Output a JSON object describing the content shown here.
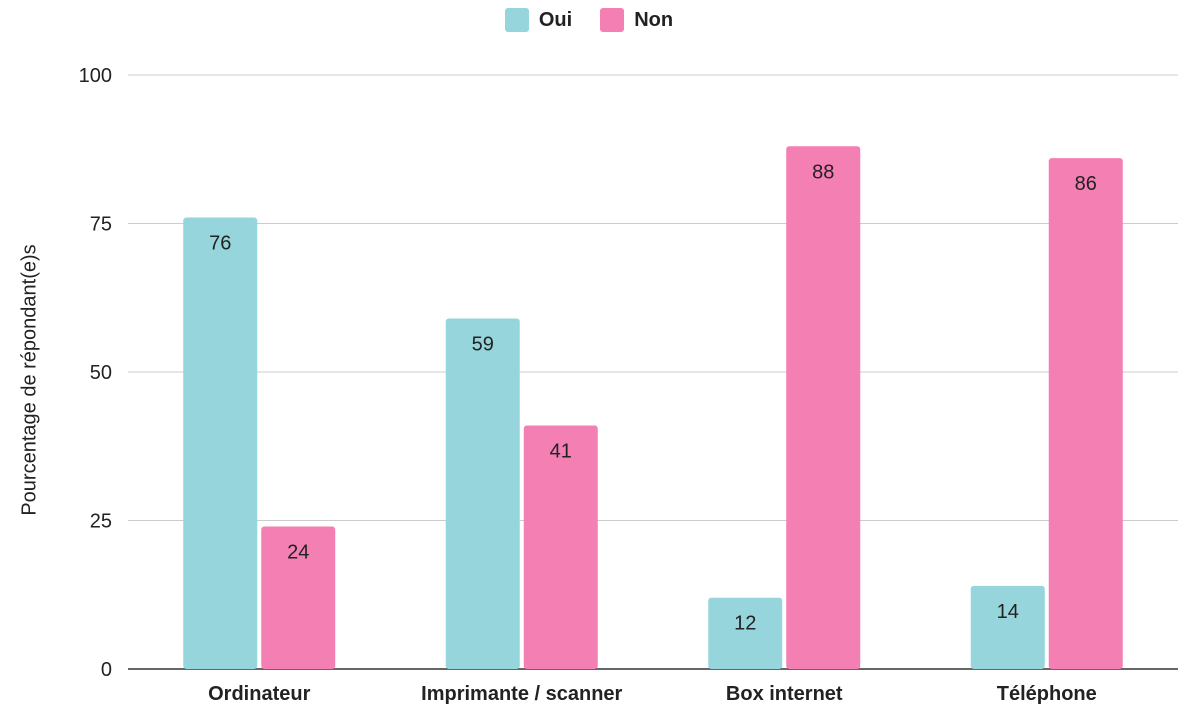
{
  "chart_data": {
    "type": "bar",
    "categories": [
      "Ordinateur",
      "Imprimante / scanner",
      "Box internet",
      "Téléphone"
    ],
    "series": [
      {
        "name": "Oui",
        "color": "#96d5db",
        "values": [
          76,
          59,
          12,
          14
        ]
      },
      {
        "name": "Non",
        "color": "#f47fb3",
        "values": [
          24,
          41,
          88,
          86
        ]
      }
    ],
    "ylabel": "Pourcentage de répondant(e)s",
    "xlabel": "",
    "ylim": [
      0,
      100
    ],
    "yticks": [
      "0",
      "25",
      "50",
      "75",
      "100"
    ],
    "grid": true,
    "legend_position": "top"
  }
}
